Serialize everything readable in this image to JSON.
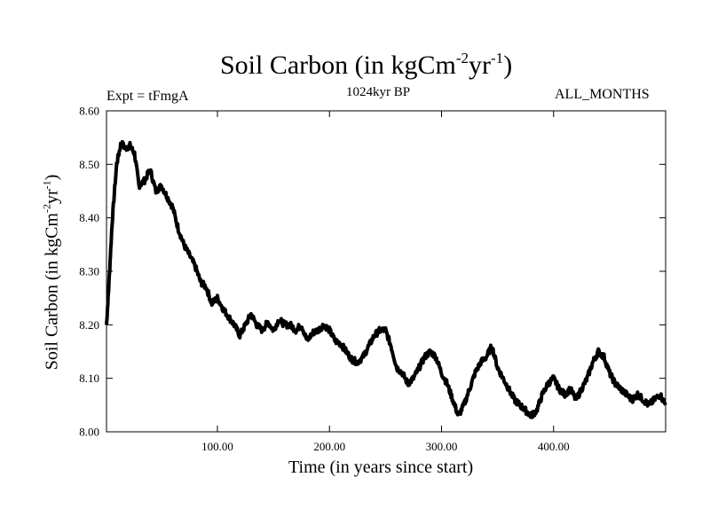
{
  "chart_data": {
    "type": "line",
    "title": "Soil Carbon (in kgCm",
    "title_sup1": "-2",
    "title_mid": "yr",
    "title_sup2": "-1",
    "title_end": ")",
    "subtitle": "1024kyr BP",
    "left_annotation": "Expt = tFmgA",
    "right_annotation": "ALL_MONTHS",
    "xlabel": "Time (in years since start)",
    "ylabel": "Soil Carbon (in kgCm",
    "ylabel_sup1": "-2",
    "ylabel_mid": "yr",
    "ylabel_sup2": "-1",
    "ylabel_end": ")",
    "xlim": [
      1,
      500
    ],
    "ylim": [
      8.0,
      8.6
    ],
    "xticks": [
      100,
      200,
      300,
      400
    ],
    "xtick_labels": [
      "100.00",
      "200.00",
      "300.00",
      "400.00"
    ],
    "yticks": [
      8.0,
      8.1,
      8.2,
      8.3,
      8.4,
      8.5,
      8.6
    ],
    "ytick_labels": [
      "8.00",
      "8.10",
      "8.20",
      "8.30",
      "8.40",
      "8.50",
      "8.60"
    ],
    "grid": false,
    "series": [
      {
        "name": "Soil Carbon",
        "color": "#000000",
        "x": [
          1,
          3,
          6,
          10,
          14,
          18,
          22,
          26,
          30,
          35,
          40,
          45,
          50,
          55,
          60,
          65,
          70,
          75,
          80,
          85,
          90,
          95,
          100,
          105,
          110,
          115,
          120,
          125,
          130,
          135,
          140,
          145,
          150,
          155,
          160,
          165,
          170,
          175,
          180,
          185,
          190,
          195,
          200,
          205,
          210,
          215,
          220,
          225,
          230,
          235,
          240,
          245,
          250,
          255,
          260,
          265,
          270,
          275,
          280,
          285,
          290,
          295,
          300,
          305,
          310,
          315,
          320,
          325,
          330,
          335,
          340,
          345,
          350,
          355,
          360,
          365,
          370,
          375,
          380,
          385,
          390,
          395,
          400,
          405,
          410,
          415,
          420,
          425,
          430,
          435,
          440,
          445,
          450,
          455,
          460,
          465,
          470,
          475,
          480,
          485,
          490,
          495,
          500
        ],
        "values": [
          8.2,
          8.27,
          8.39,
          8.5,
          8.54,
          8.53,
          8.535,
          8.52,
          8.46,
          8.47,
          8.49,
          8.45,
          8.46,
          8.44,
          8.42,
          8.38,
          8.35,
          8.33,
          8.31,
          8.28,
          8.27,
          8.24,
          8.25,
          8.23,
          8.215,
          8.2,
          8.18,
          8.2,
          8.22,
          8.2,
          8.19,
          8.205,
          8.19,
          8.21,
          8.2,
          8.2,
          8.19,
          8.2,
          8.17,
          8.185,
          8.19,
          8.2,
          8.19,
          8.17,
          8.165,
          8.15,
          8.135,
          8.13,
          8.14,
          8.16,
          8.18,
          8.19,
          8.19,
          8.16,
          8.12,
          8.11,
          8.09,
          8.1,
          8.12,
          8.14,
          8.15,
          8.14,
          8.11,
          8.09,
          8.06,
          8.03,
          8.05,
          8.08,
          8.11,
          8.13,
          8.14,
          8.16,
          8.12,
          8.1,
          8.08,
          8.06,
          8.05,
          8.04,
          8.03,
          8.04,
          8.07,
          8.09,
          8.1,
          8.08,
          8.07,
          8.08,
          8.06,
          8.08,
          8.1,
          8.13,
          8.15,
          8.14,
          8.11,
          8.09,
          8.08,
          8.07,
          8.06,
          8.07,
          8.06,
          8.05,
          8.06,
          8.07,
          8.05
        ]
      }
    ]
  }
}
